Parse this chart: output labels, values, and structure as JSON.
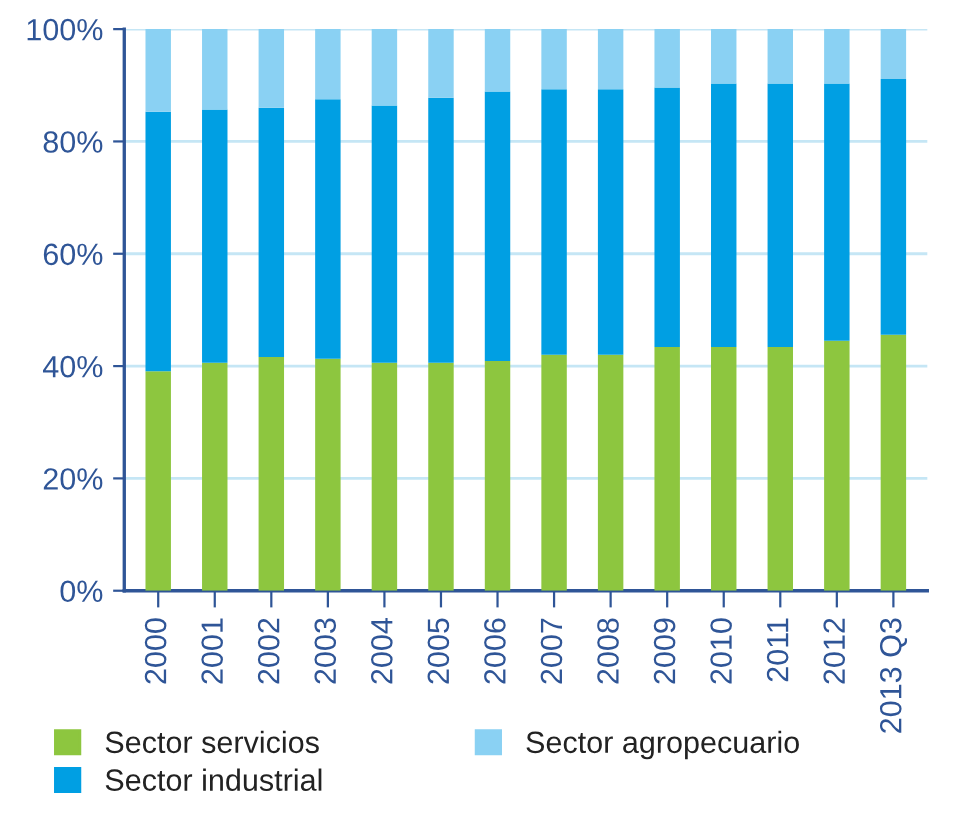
{
  "chart_data": {
    "type": "bar",
    "stacked": true,
    "categories": [
      "2000",
      "2001",
      "2002",
      "2003",
      "2004",
      "2005",
      "2006",
      "2007",
      "2008",
      "2009",
      "2010",
      "2011",
      "2012",
      "2013 Q3"
    ],
    "series": [
      {
        "name": "Sector servicios",
        "color": "#8dc63f",
        "values": [
          39.1,
          40.6,
          41.6,
          41.3,
          40.6,
          40.6,
          40.9,
          42.0,
          42.0,
          43.4,
          43.4,
          43.4,
          44.5,
          45.6
        ]
      },
      {
        "name": "Sector industrial",
        "color": "#009fe3",
        "values": [
          46.2,
          45.1,
          44.4,
          46.2,
          45.8,
          47.2,
          48.0,
          47.3,
          47.3,
          46.2,
          46.9,
          46.9,
          45.8,
          45.5
        ]
      },
      {
        "name": "Sector agropecuario",
        "color": "#8ad1f3",
        "values": [
          14.7,
          14.3,
          14.0,
          12.5,
          13.6,
          12.2,
          11.1,
          10.7,
          10.7,
          10.4,
          9.7,
          9.7,
          9.7,
          8.9
        ]
      }
    ],
    "ylim": [
      0,
      100
    ],
    "yticks": [
      {
        "value": 0,
        "label": "0%"
      },
      {
        "value": 20,
        "label": "20%"
      },
      {
        "value": 40,
        "label": "40%"
      },
      {
        "value": 60,
        "label": "60%"
      },
      {
        "value": 80,
        "label": "80%"
      },
      {
        "value": 100,
        "label": "100%"
      }
    ],
    "grid": "y",
    "legend": "bottom"
  }
}
